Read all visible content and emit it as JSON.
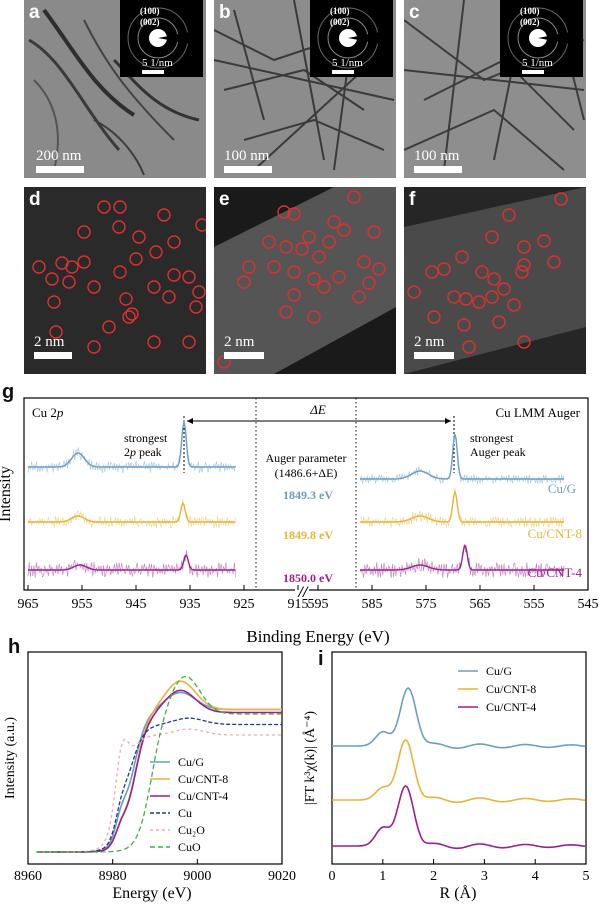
{
  "colors": {
    "cu_g": "#6a9ec8",
    "cu_cnt8": "#e6b43c",
    "cu_cnt4": "#9c1f8f",
    "cu": "#1c3a8c",
    "cu2o": "#f2a8b8",
    "cuo": "#3cb43c"
  },
  "panels_top": [
    {
      "label": "a",
      "scale": "200 nm",
      "saed_top": "(100)",
      "saed_bottom": "(002)",
      "saed_scale": "5 1/nm"
    },
    {
      "label": "b",
      "scale": "100 nm",
      "saed_top": "(100)",
      "saed_bottom": "(002)",
      "saed_scale": "5 1/nm"
    },
    {
      "label": "c",
      "scale": "100 nm",
      "saed_top": "(100)",
      "saed_bottom": "(002)",
      "saed_scale": "5 1/nm"
    }
  ],
  "panels_mid": [
    {
      "label": "d",
      "scale": "2 nm"
    },
    {
      "label": "e",
      "scale": "2 nm"
    },
    {
      "label": "f",
      "scale": "2 nm"
    }
  ],
  "panel_g": {
    "label": "g",
    "left_title": "Cu 2",
    "left_title_italic": "p",
    "right_title": "Cu LMM Auger",
    "delta": "ΔE",
    "peak1_line1": "strongest",
    "peak1_line2": "2",
    "peak1_line2_italic": "p",
    "peak1_line2_rest": " peak",
    "peak2_line1": "strongest",
    "peak2_line2": "Auger peak",
    "auger_line1": "Auger parameter",
    "auger_line2": "(1486.6+ΔE)",
    "auger_values": [
      "1849.3 eV",
      "1849.8 eV",
      "1850.0 eV"
    ],
    "series": [
      "Cu/G",
      "Cu/CNT-8",
      "Cu/CNT-4"
    ],
    "ylabel": "Intensity",
    "xlabel": "Binding Energy (eV)",
    "ticks_left": [
      "965",
      "955",
      "945",
      "935",
      "925",
      "915"
    ],
    "ticks_right": [
      "595",
      "585",
      "575",
      "565",
      "555",
      "545"
    ],
    "break_mark": "//"
  },
  "panel_h": {
    "label": "h",
    "ylabel": "Intensity (a.u.)",
    "xlabel": "Energy (eV)",
    "ticks": [
      "8960",
      "8980",
      "9000",
      "9020"
    ],
    "legend": [
      "Cu/G",
      "Cu/CNT-8",
      "Cu/CNT-4",
      "Cu",
      "Cu₂O",
      "CuO"
    ]
  },
  "panel_i": {
    "label": "i",
    "ylabel": "|FT k³χ(k)| (Å⁻⁴)",
    "xlabel": "R (Å)",
    "ticks": [
      "0",
      "1",
      "2",
      "3",
      "4",
      "5"
    ],
    "legend": [
      "Cu/G",
      "Cu/CNT-8",
      "Cu/CNT-4"
    ]
  }
}
